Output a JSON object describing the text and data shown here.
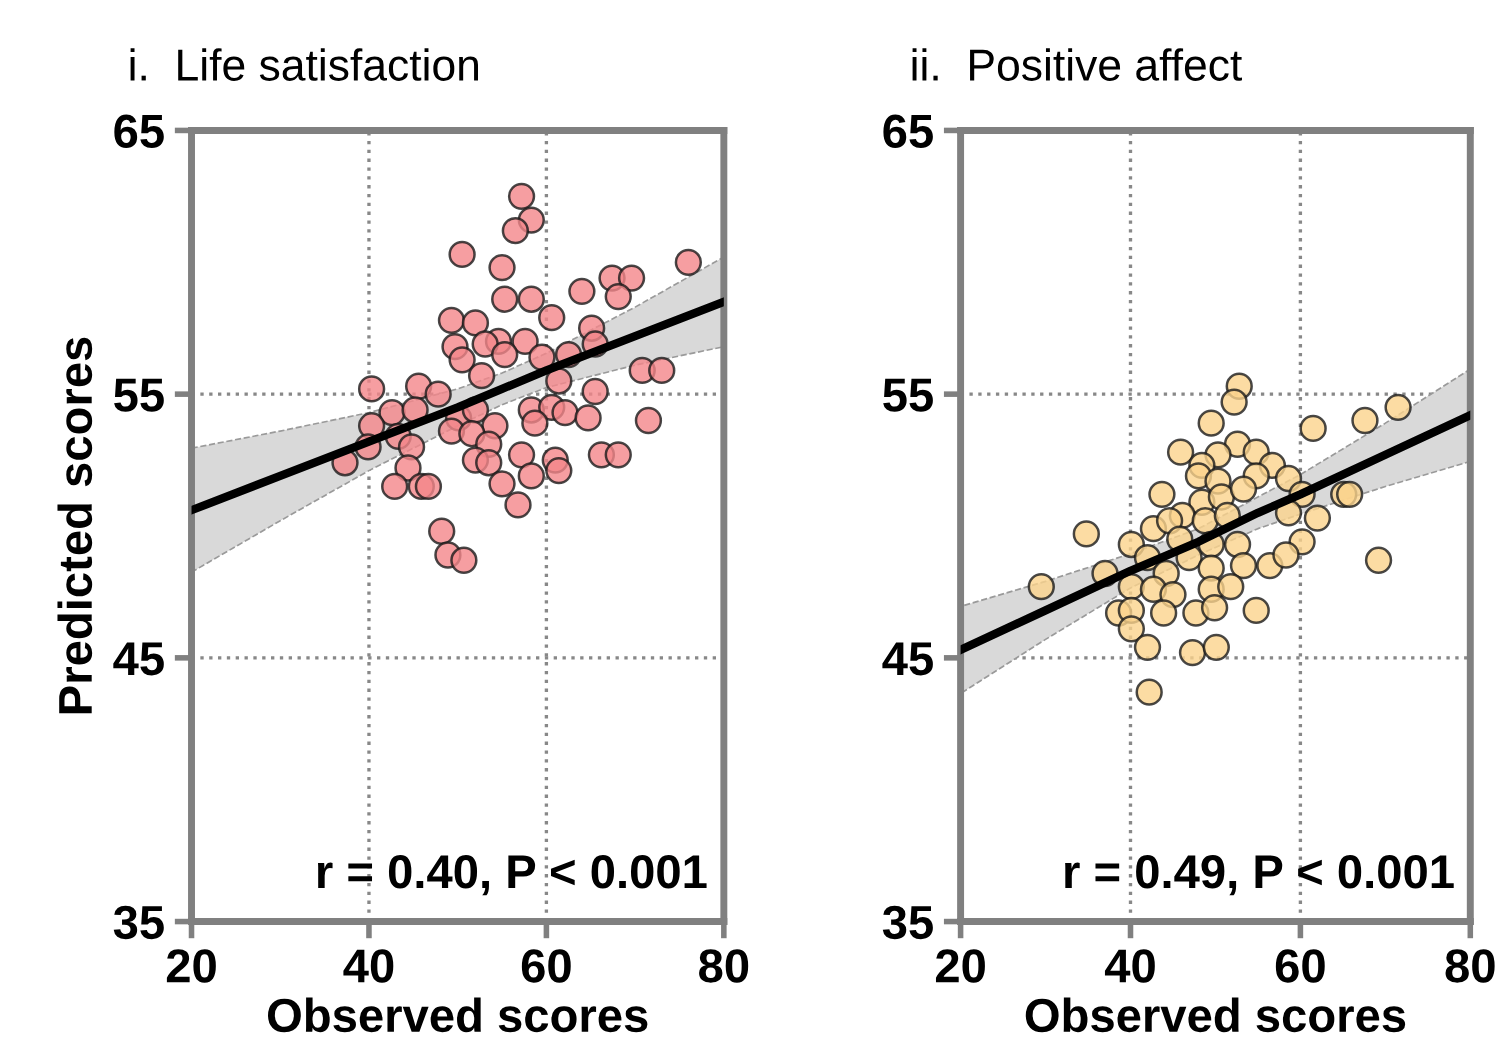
{
  "chart_data": [
    {
      "type": "scatter",
      "title": "i.  Life satisfaction",
      "xlabel": "Observed scores",
      "ylabel": "Predicted scores",
      "xlim": [
        20,
        80
      ],
      "ylim": [
        35,
        65
      ],
      "xticks": [
        20,
        40,
        60,
        80
      ],
      "yticks": [
        35,
        45,
        55,
        65
      ],
      "grid": true,
      "legend": false,
      "annotations": [
        "r = 0.40, P < 0.001"
      ],
      "series": [
        {
          "marker": "circle",
          "color": "#f4868a",
          "x": [
            57.2,
            58.3,
            56.5,
            50.5,
            55.0,
            76.0,
            67.4,
            69.6,
            68.1,
            64.0,
            55.3,
            58.3,
            60.6,
            49.3,
            52.0,
            54.6,
            57.6,
            65.1,
            65.5,
            49.7,
            50.5,
            53.1,
            55.3,
            59.5,
            62.5,
            52.7,
            61.4,
            70.8,
            73.0,
            40.3,
            45.6,
            47.8,
            65.5,
            42.6,
            45.2,
            50.1,
            52.0,
            54.2,
            58.3,
            60.6,
            62.1,
            64.7,
            71.5,
            40.3,
            49.3,
            51.6,
            43.3,
            58.7,
            39.9,
            44.8,
            37.3,
            53.5,
            52.0,
            53.5,
            57.2,
            61.0,
            61.4,
            66.2,
            68.1,
            44.4,
            58.3,
            42.9,
            45.9,
            46.7,
            55.0,
            56.8,
            48.2,
            48.9,
            50.7
          ],
          "values": [
            62.5,
            61.6,
            61.2,
            60.3,
            59.8,
            60.0,
            59.4,
            59.4,
            58.7,
            58.9,
            58.6,
            58.6,
            57.9,
            57.8,
            57.7,
            57.0,
            57.0,
            57.5,
            56.9,
            56.8,
            56.3,
            56.9,
            56.5,
            56.4,
            56.5,
            55.7,
            55.5,
            55.9,
            55.9,
            55.2,
            55.3,
            55.0,
            55.1,
            54.3,
            54.4,
            54.1,
            54.4,
            53.8,
            54.4,
            54.5,
            54.3,
            54.1,
            54.0,
            53.8,
            53.6,
            53.5,
            53.4,
            53.9,
            53.0,
            53.0,
            52.4,
            53.1,
            52.5,
            52.4,
            52.7,
            52.5,
            52.1,
            52.7,
            52.7,
            52.2,
            51.9,
            51.5,
            51.5,
            51.5,
            51.6,
            50.8,
            49.8,
            48.9,
            48.7
          ]
        },
        {
          "type": "line",
          "color": "#000000",
          "x": [
            20,
            30,
            40,
            50,
            55,
            60,
            70,
            80
          ],
          "values": [
            50.6,
            51.9,
            53.2,
            54.5,
            55.2,
            55.9,
            57.2,
            58.5
          ],
          "lower": [
            48.25,
            50.2,
            52.1,
            53.8,
            54.6,
            55.25,
            56.1,
            56.8
          ],
          "upper": [
            52.95,
            53.6,
            54.3,
            55.2,
            55.8,
            56.55,
            58.3,
            60.2
          ]
        }
      ]
    },
    {
      "type": "scatter",
      "title": "ii.  Positive affect",
      "xlabel": "Observed scores",
      "xlim": [
        20,
        80
      ],
      "ylim": [
        35,
        65
      ],
      "xticks": [
        20,
        40,
        60,
        80
      ],
      "yticks": [
        35,
        45,
        55,
        65
      ],
      "grid": true,
      "legend": false,
      "annotations": [
        "r = 0.49, P < 0.001"
      ],
      "series": [
        {
          "marker": "circle",
          "color": "#fbd38c",
          "x": [
            52.8,
            52.2,
            49.5,
            61.5,
            67.6,
            71.5,
            52.6,
            45.9,
            50.3,
            54.8,
            48.4,
            56.7,
            48.0,
            50.3,
            54.8,
            58.6,
            43.7,
            48.4,
            50.7,
            53.3,
            60.2,
            65.1,
            65.8,
            46.1,
            42.7,
            44.6,
            48.8,
            51.4,
            58.6,
            62.0,
            34.8,
            40.1,
            45.8,
            49.5,
            52.6,
            60.2,
            69.2,
            29.5,
            37.0,
            42.0,
            44.2,
            46.9,
            49.5,
            53.3,
            56.4,
            58.3,
            40.1,
            42.7,
            49.5,
            51.8,
            45.0,
            38.6,
            40.1,
            43.9,
            47.7,
            49.9,
            54.8,
            40.1,
            42.0,
            47.3,
            50.1,
            42.2
          ],
          "values": [
            55.3,
            54.7,
            53.9,
            53.7,
            54.0,
            54.5,
            53.1,
            52.8,
            52.7,
            52.8,
            52.3,
            52.3,
            51.9,
            51.7,
            51.9,
            51.8,
            51.2,
            50.9,
            51.1,
            51.4,
            51.2,
            51.2,
            51.2,
            50.4,
            49.9,
            50.2,
            50.2,
            50.4,
            50.5,
            50.3,
            49.7,
            49.3,
            49.5,
            49.3,
            49.3,
            49.4,
            48.7,
            47.7,
            48.2,
            48.8,
            48.2,
            48.8,
            48.4,
            48.5,
            48.5,
            48.9,
            47.7,
            47.6,
            47.6,
            47.7,
            47.4,
            46.7,
            46.8,
            46.7,
            46.7,
            46.9,
            46.8,
            46.1,
            45.4,
            45.2,
            45.4,
            43.7
          ]
        },
        {
          "type": "line",
          "color": "#000000",
          "x": [
            20,
            30,
            40,
            48,
            55,
            60,
            70,
            80
          ],
          "values": [
            45.3,
            46.8,
            48.3,
            49.4,
            50.5,
            51.2,
            52.7,
            54.2
          ],
          "lower": [
            43.65,
            45.7,
            47.65,
            48.9,
            49.9,
            50.45,
            51.5,
            52.45
          ],
          "upper": [
            46.95,
            47.9,
            48.95,
            49.9,
            51.1,
            51.95,
            53.9,
            55.95
          ]
        }
      ]
    }
  ]
}
